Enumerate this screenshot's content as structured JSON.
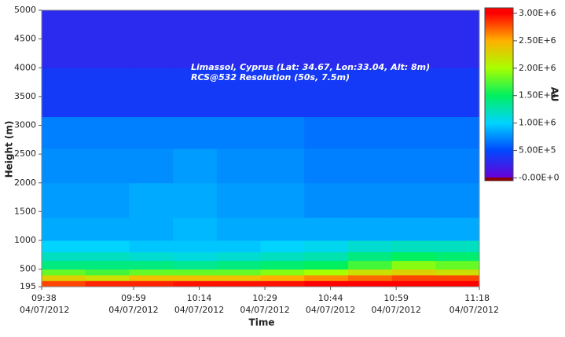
{
  "chart_data": {
    "type": "heatmap",
    "annotations": [
      "Limassol, Cyprus (Lat: 34.67, Lon:33.04, Alt: 8m)",
      "RCS@532 Resolution (50s, 7.5m)"
    ],
    "y_label": "Height (m)",
    "x_label": "Time",
    "colorbar_label": "AU",
    "x": [
      "09:38",
      "09:48",
      "09:58",
      "10:08",
      "10:18",
      "10:28",
      "10:38",
      "10:48",
      "10:58",
      "11:08",
      "11:18"
    ],
    "y": [
      195,
      300,
      400,
      500,
      650,
      800,
      1000,
      1400,
      2000,
      2600,
      3150,
      4000,
      5000
    ],
    "z": [
      [
        2800000,
        2900000,
        2900000,
        2950000,
        2950000,
        2950000,
        3000000,
        3000000,
        3000000,
        3000000
      ],
      [
        2300000,
        2200000,
        2400000,
        2400000,
        2400000,
        2500000,
        2600000,
        2700000,
        2800000,
        2800000
      ],
      [
        1800000,
        1700000,
        1800000,
        1800000,
        1800000,
        1900000,
        2000000,
        2200000,
        2300000,
        2200000
      ],
      [
        1400000,
        1400000,
        1400000,
        1350000,
        1400000,
        1450000,
        1500000,
        1700000,
        1900000,
        1800000
      ],
      [
        1200000,
        1200000,
        1150000,
        1100000,
        1150000,
        1200000,
        1250000,
        1400000,
        1500000,
        1450000
      ],
      [
        1000000,
        1000000,
        950000,
        950000,
        950000,
        1000000,
        1050000,
        1150000,
        1200000,
        1200000
      ],
      [
        850000,
        850000,
        850000,
        900000,
        850000,
        850000,
        850000,
        850000,
        850000,
        850000
      ],
      [
        800000,
        800000,
        850000,
        850000,
        800000,
        800000,
        750000,
        750000,
        750000,
        750000
      ],
      [
        750000,
        750000,
        750000,
        800000,
        750000,
        750000,
        700000,
        700000,
        700000,
        700000
      ],
      [
        700000,
        700000,
        700000,
        700000,
        700000,
        700000,
        650000,
        650000,
        650000,
        650000
      ],
      [
        400000,
        400000,
        400000,
        400000,
        400000,
        400000,
        400000,
        400000,
        400000,
        400000
      ],
      [
        300000,
        300000,
        300000,
        300000,
        300000,
        300000,
        300000,
        300000,
        300000,
        300000
      ]
    ],
    "ylim": [
      195,
      5000
    ],
    "yticks": [
      195,
      500,
      1000,
      1500,
      2000,
      2500,
      3000,
      3500,
      4000,
      4500,
      5000
    ],
    "xlim": [
      "09:38",
      "11:18"
    ],
    "xticks": [
      {
        "value": "09:38",
        "label": [
          "09:38",
          "04/07/2012"
        ]
      },
      {
        "value": "09:59",
        "label": [
          "09:59",
          "04/07/2012"
        ]
      },
      {
        "value": "10:14",
        "label": [
          "10:14",
          "04/07/2012"
        ]
      },
      {
        "value": "10:29",
        "label": [
          "10:29",
          "04/07/2012"
        ]
      },
      {
        "value": "10:44",
        "label": [
          "10:44",
          "04/07/2012"
        ]
      },
      {
        "value": "10:59",
        "label": [
          "10:59",
          "04/07/2012"
        ]
      },
      {
        "value": "11:18",
        "label": [
          "11:18",
          "04/07/2012"
        ]
      }
    ],
    "zlim": [
      -50000,
      3100000
    ],
    "zticks": [
      {
        "value": 0,
        "label": "-0.00E+0"
      },
      {
        "value": 500000,
        "label": "5.00E+5"
      },
      {
        "value": 1000000,
        "label": "1.00E+6"
      },
      {
        "value": 1500000,
        "label": "1.50E+6"
      },
      {
        "value": 2000000,
        "label": "2.00E+6"
      },
      {
        "value": 2500000,
        "label": "2.50E+6"
      },
      {
        "value": 3000000,
        "label": "3.00E+6"
      }
    ],
    "colormap": [
      "#6a00d8",
      "#0048ff",
      "#00d4ff",
      "#00f060",
      "#a8ff00",
      "#ffb000",
      "#ff0000"
    ]
  }
}
